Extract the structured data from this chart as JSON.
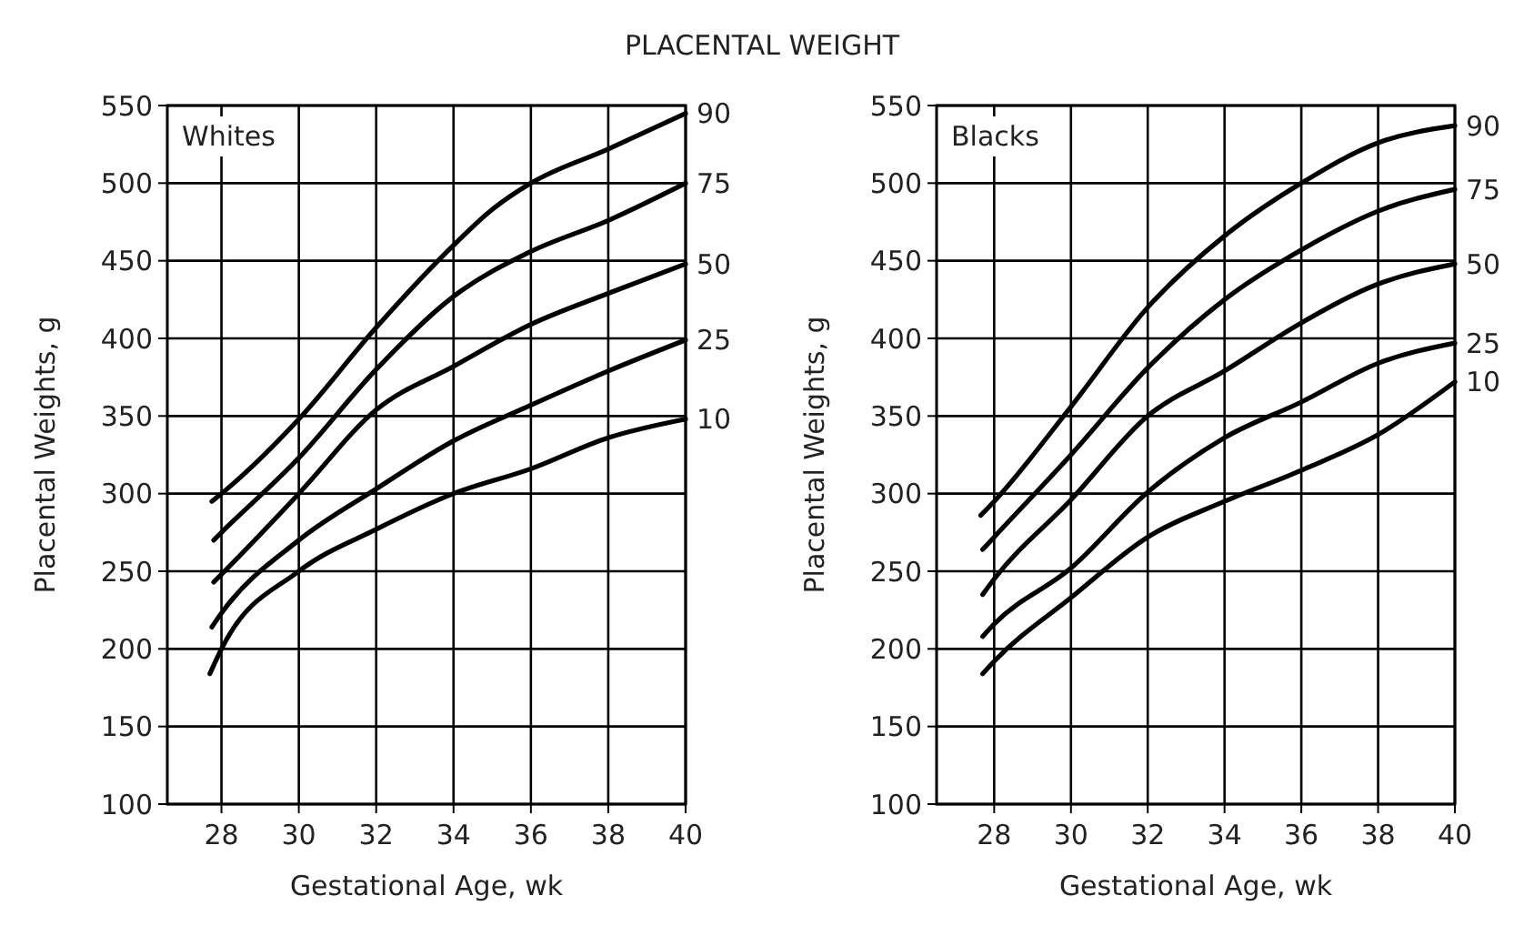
{
  "chart_data": [
    {
      "type": "line",
      "title": "PLACENTAL WEIGHT",
      "xlabel": "Gestational Age, wk",
      "ylabel": "Placental Weights, g",
      "annotations": [
        "Whites"
      ],
      "xlim": [
        26.6,
        40
      ],
      "ylim": [
        100,
        550
      ],
      "xticks": [
        28,
        30,
        32,
        34,
        36,
        38,
        40
      ],
      "yticks": [
        100,
        150,
        200,
        250,
        300,
        350,
        400,
        450,
        500,
        550
      ],
      "grid": true,
      "line_style": "solid",
      "marker": "none",
      "series": [
        {
          "name": "90",
          "color": "#000000",
          "x": [
            27.75,
            28,
            30,
            32,
            34,
            35,
            36,
            38,
            40
          ],
          "values": [
            295,
            300,
            348,
            407,
            460,
            483,
            500,
            522,
            545
          ]
        },
        {
          "name": "75",
          "color": "#000000",
          "x": [
            27.8,
            28,
            30,
            32,
            34,
            36,
            38,
            40
          ],
          "values": [
            270,
            275,
            323,
            380,
            427,
            456,
            476,
            500
          ]
        },
        {
          "name": "50",
          "color": "#000000",
          "x": [
            27.8,
            28,
            30,
            32,
            34,
            36,
            38,
            40
          ],
          "values": [
            243,
            248,
            300,
            354,
            382,
            409,
            429,
            448
          ]
        },
        {
          "name": "25",
          "color": "#000000",
          "x": [
            27.75,
            28,
            30,
            32,
            34,
            36,
            38,
            40
          ],
          "values": [
            214,
            223,
            270,
            303,
            334,
            357,
            379,
            399
          ]
        },
        {
          "name": "10",
          "color": "#000000",
          "x": [
            27.7,
            28,
            30,
            32,
            34,
            36,
            38,
            40
          ],
          "values": [
            184,
            200,
            250,
            277,
            300,
            316,
            336,
            348
          ]
        }
      ]
    },
    {
      "type": "line",
      "xlabel": "Gestational Age, wk",
      "ylabel": "Placental Weights, g",
      "annotations": [
        "Blacks"
      ],
      "xlim": [
        26.5,
        40
      ],
      "ylim": [
        100,
        550
      ],
      "xticks": [
        28,
        30,
        32,
        34,
        36,
        38,
        40
      ],
      "yticks": [
        100,
        150,
        200,
        250,
        300,
        350,
        400,
        450,
        500,
        550
      ],
      "grid": true,
      "line_style": "solid",
      "marker": "none",
      "series": [
        {
          "name": "90",
          "color": "#000000",
          "x": [
            27.65,
            28,
            30,
            32,
            34,
            36,
            38,
            40
          ],
          "values": [
            286,
            295,
            356,
            420,
            466,
            500,
            526,
            537
          ]
        },
        {
          "name": "75",
          "color": "#000000",
          "x": [
            27.7,
            28,
            30,
            32,
            34,
            36,
            38,
            40
          ],
          "values": [
            264,
            272,
            325,
            381,
            425,
            457,
            482,
            496
          ]
        },
        {
          "name": "50",
          "color": "#000000",
          "x": [
            27.7,
            28,
            30,
            32,
            34,
            36,
            38,
            40
          ],
          "values": [
            235,
            245,
            296,
            350,
            379,
            410,
            435,
            448
          ]
        },
        {
          "name": "25",
          "color": "#000000",
          "x": [
            27.7,
            28,
            30,
            32,
            34,
            36,
            38,
            40
          ],
          "values": [
            208,
            216,
            252,
            301,
            336,
            359,
            384,
            397
          ]
        },
        {
          "name": "10",
          "color": "#000000",
          "x": [
            27.7,
            28,
            30,
            32,
            34,
            36,
            38,
            40
          ],
          "values": [
            184,
            192,
            233,
            272,
            295,
            315,
            338,
            372
          ]
        }
      ]
    }
  ]
}
